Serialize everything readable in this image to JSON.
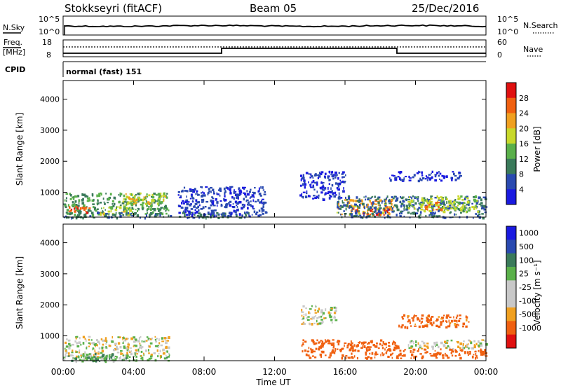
{
  "header": {
    "title": "Stokkseyri (fitACF)",
    "beam": "Beam 05",
    "date": "25/Dec/2016"
  },
  "top_panel": {
    "nsky_label": "N.Sky",
    "nsearch_label": "N.Search",
    "left_ticks": [
      "10^5",
      "10^0"
    ],
    "right_ticks": [
      "10^5",
      "10^0"
    ]
  },
  "freq_panel": {
    "freq_label": "Freq.",
    "mhz_label": "[MHz]",
    "nave_label": "Nave",
    "left_ticks": [
      "18",
      "8"
    ],
    "right_ticks": [
      "60",
      "0"
    ]
  },
  "cpid": {
    "label": "CPID",
    "program": "normal (fast) 151"
  },
  "colors": {
    "power": [
      "#1a1ae0",
      "#2a4ab0",
      "#3a7a5a",
      "#5ab04a",
      "#c8d82a",
      "#f0a020",
      "#f06010",
      "#e01010"
    ],
    "velocity": [
      "#e01010",
      "#f06010",
      "#f0a020",
      "#c8c8c8",
      "#c8c8c8",
      "#5ab04a",
      "#3a7a5a",
      "#2a4ab0",
      "#1a1ae0"
    ]
  },
  "chart_data": [
    {
      "type": "heatmap",
      "quantity": "power",
      "ylabel": "Slant Range [km]",
      "yticks": [
        "1000",
        "2000",
        "3000",
        "4000"
      ],
      "ylim": [
        200,
        4600
      ],
      "colorbar_label": "Power [dB]",
      "colorbar_ticks": [
        "4",
        "8",
        "12",
        "16",
        "20",
        "24",
        "28"
      ],
      "clim": [
        0,
        32
      ],
      "blobs": [
        {
          "t0": 0.0,
          "t1": 6.0,
          "r0": 300,
          "r1": 1000,
          "v": 12
        },
        {
          "t0": 0.3,
          "t1": 1.5,
          "r0": 350,
          "r1": 600,
          "v": 26
        },
        {
          "t0": 2.0,
          "t1": 4.0,
          "r0": 300,
          "r1": 550,
          "v": 18
        },
        {
          "t0": 3.3,
          "t1": 5.8,
          "r0": 600,
          "r1": 1000,
          "v": 18
        },
        {
          "t0": 0.0,
          "t1": 10.5,
          "r0": 200,
          "r1": 380,
          "v": 9
        },
        {
          "t0": 6.5,
          "t1": 11.5,
          "r0": 250,
          "r1": 1200,
          "v": 5
        },
        {
          "t0": 13.4,
          "t1": 16.0,
          "r0": 800,
          "r1": 1700,
          "v": 4
        },
        {
          "t0": 15.5,
          "t1": 18.8,
          "r0": 300,
          "r1": 800,
          "v": 22
        },
        {
          "t0": 16.5,
          "t1": 18.5,
          "r0": 300,
          "r1": 500,
          "v": 28
        },
        {
          "t0": 15.5,
          "t1": 24.0,
          "r0": 200,
          "r1": 900,
          "v": 8
        },
        {
          "t0": 19.5,
          "t1": 23.5,
          "r0": 400,
          "r1": 900,
          "v": 17
        },
        {
          "t0": 20.5,
          "t1": 21.5,
          "r0": 450,
          "r1": 700,
          "v": 25
        },
        {
          "t0": 18.5,
          "t1": 22.5,
          "r0": 1400,
          "r1": 1700,
          "v": 4
        }
      ]
    },
    {
      "type": "heatmap",
      "quantity": "velocity",
      "ylabel": "Slant Range [km]",
      "yticks": [
        "1000",
        "2000",
        "3000",
        "4000"
      ],
      "ylim": [
        200,
        4600
      ],
      "xlabel": "Time UT",
      "xticks": [
        "00:00",
        "04:00",
        "08:00",
        "12:00",
        "16:00",
        "20:00",
        "00:00"
      ],
      "xlim": [
        0,
        24
      ],
      "colorbar_label": "Velocity [m s⁻¹]",
      "colorbar_ticks": [
        "1000",
        "500",
        "100",
        "25",
        "-25",
        "-100",
        "-500",
        "-1000"
      ],
      "blobs": [
        {
          "t0": 0.0,
          "t1": 6.0,
          "r0": 300,
          "r1": 1000,
          "v": 0
        },
        {
          "t0": 1.5,
          "t1": 3.0,
          "r0": 200,
          "r1": 450,
          "v": 300
        },
        {
          "t0": 0.0,
          "t1": 6.0,
          "r0": 200,
          "r1": 380,
          "v": 60
        },
        {
          "t0": 13.5,
          "t1": 15.5,
          "r0": 1400,
          "r1": 2000,
          "v": 0
        },
        {
          "t0": 15.5,
          "t1": 19.0,
          "r0": 300,
          "r1": 900,
          "v": -300
        },
        {
          "t0": 13.5,
          "t1": 15.5,
          "r0": 300,
          "r1": 900,
          "v": -300
        },
        {
          "t0": 19.5,
          "t1": 24.0,
          "r0": 600,
          "r1": 900,
          "v": 0
        },
        {
          "t0": 19.0,
          "t1": 24.0,
          "r0": 300,
          "r1": 600,
          "v": -200
        },
        {
          "t0": 19.0,
          "t1": 23.0,
          "r0": 1300,
          "r1": 1700,
          "v": -150
        }
      ]
    }
  ]
}
